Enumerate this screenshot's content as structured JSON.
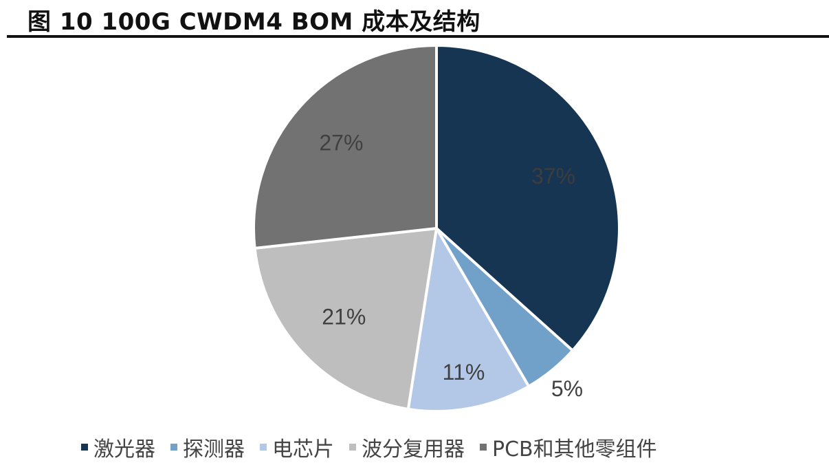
{
  "title": "图 10 100G CWDM4 BOM 成本及结构",
  "chart_data": {
    "type": "pie",
    "title": "图 10 100G CWDM4 BOM 成本及结构",
    "categories": [
      "激光器",
      "探测器",
      "电芯片",
      "波分复用器",
      "PCB和其他零组件"
    ],
    "values": [
      37,
      5,
      11,
      21,
      27
    ],
    "labels": [
      "37%",
      "5%",
      "11%",
      "21%",
      "27%"
    ],
    "colors": [
      "#163553",
      "#71a1c9",
      "#b3c8e6",
      "#bebebe",
      "#727272"
    ],
    "start_angle": "12 o'clock, clockwise",
    "legend_position": "bottom"
  },
  "legend": [
    {
      "label": "激光器",
      "color": "#163553"
    },
    {
      "label": "探测器",
      "color": "#71a1c9"
    },
    {
      "label": "电芯片",
      "color": "#b3c8e6"
    },
    {
      "label": "波分复用器",
      "color": "#bebebe"
    },
    {
      "label": "PCB和其他零组件",
      "color": "#727272"
    }
  ]
}
